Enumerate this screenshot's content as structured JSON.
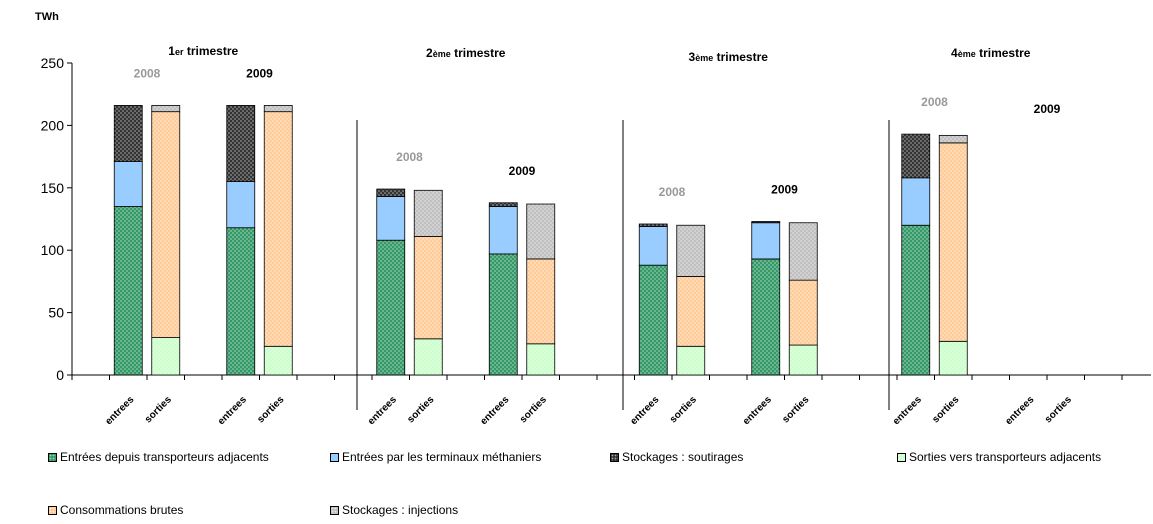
{
  "chart_data": {
    "type": "bar",
    "stacked": true,
    "yunit": "TWh",
    "ylim": [
      0,
      250
    ],
    "yticks": [
      0,
      50,
      100,
      150,
      200,
      250
    ],
    "bar_labels": [
      "entrees",
      "sorties"
    ],
    "quarter_titles": [
      {
        "num": "1",
        "sup": "er",
        "rest": " trimestre"
      },
      {
        "num": "2",
        "sup": "ème",
        "rest": " trimestre"
      },
      {
        "num": "3",
        "sup": "ème",
        "rest": " trimestre"
      },
      {
        "num": "4",
        "sup": "ème",
        "rest": " trimestre"
      }
    ],
    "year_labels": [
      "2008",
      "2009"
    ],
    "series": [
      {
        "name": "Entrées depuis transporteurs adjacents",
        "side": "entrees",
        "color": "#339966",
        "pattern": "dots"
      },
      {
        "name": "Entrées par les terminaux méthaniers",
        "side": "entrees",
        "color": "#99ccff",
        "pattern": "solid"
      },
      {
        "name": "Stockages : soutirages",
        "side": "entrees",
        "color": "#333333",
        "pattern": "dots"
      },
      {
        "name": "Sorties vers transporteurs adjacents",
        "side": "sorties",
        "color": "#ccffcc",
        "pattern": "dots"
      },
      {
        "name": "Consommations brutes",
        "side": "sorties",
        "color": "#ffcc99",
        "pattern": "dots"
      },
      {
        "name": "Stockages : injections",
        "side": "sorties",
        "color": "#c0c0c0",
        "pattern": "dots"
      }
    ],
    "quarters": [
      {
        "y2008": {
          "entrees": [
            135,
            36,
            45
          ],
          "sorties": [
            30,
            181,
            5
          ]
        },
        "y2009": {
          "entrees": [
            118,
            37,
            61
          ],
          "sorties": [
            23,
            188,
            5
          ]
        }
      },
      {
        "y2008": {
          "entrees": [
            108,
            35,
            6
          ],
          "sorties": [
            29,
            82,
            37
          ]
        },
        "y2009": {
          "entrees": [
            97,
            38,
            3
          ],
          "sorties": [
            25,
            68,
            44
          ]
        }
      },
      {
        "y2008": {
          "entrees": [
            88,
            31,
            2
          ],
          "sorties": [
            23,
            56,
            41
          ]
        },
        "y2009": {
          "entrees": [
            93,
            29,
            1
          ],
          "sorties": [
            24,
            52,
            46
          ]
        }
      },
      {
        "y2008": {
          "entrees": [
            120,
            38,
            35
          ],
          "sorties": [
            27,
            159,
            6
          ]
        },
        "y2009": {
          "entrees": [
            0,
            0,
            0
          ],
          "sorties": [
            0,
            0,
            0
          ]
        }
      }
    ]
  }
}
